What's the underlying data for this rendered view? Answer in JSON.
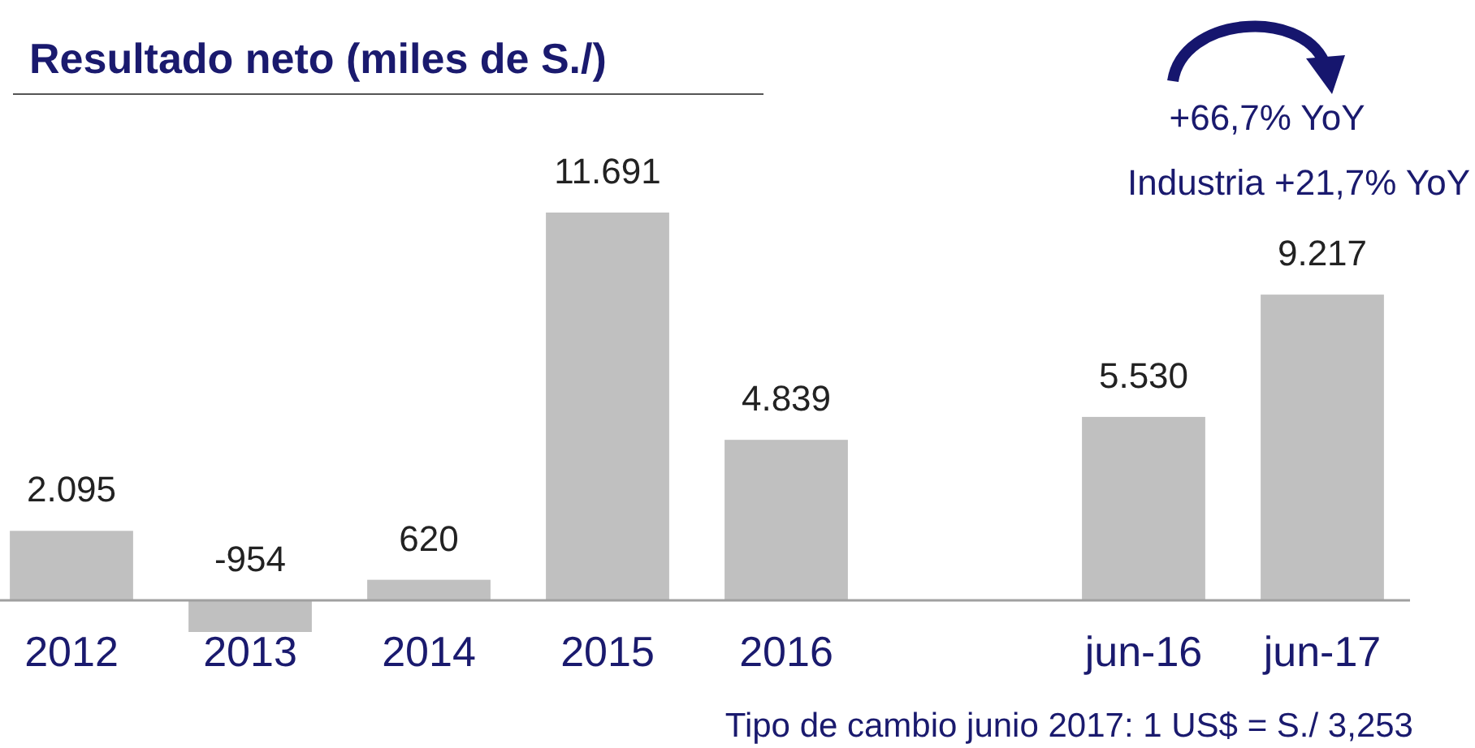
{
  "chart_data": {
    "type": "bar",
    "title": "Resultado neto (miles de S./)",
    "categories": [
      "2012",
      "2013",
      "2014",
      "2015",
      "2016",
      null,
      "jun-16",
      "jun-17"
    ],
    "values": [
      2095,
      -954,
      620,
      11691,
      4839,
      null,
      5530,
      9217
    ],
    "value_labels": [
      "2.095",
      "-954",
      "620",
      "11.691",
      "4.839",
      null,
      "5.530",
      "9.217"
    ],
    "color": "#c0c0c0",
    "annotations": [
      "+66,7% YoY",
      "Industria +21,7% YoY",
      "Tipo de cambio junio 2017: 1 US$ = S./ 3,253"
    ]
  }
}
